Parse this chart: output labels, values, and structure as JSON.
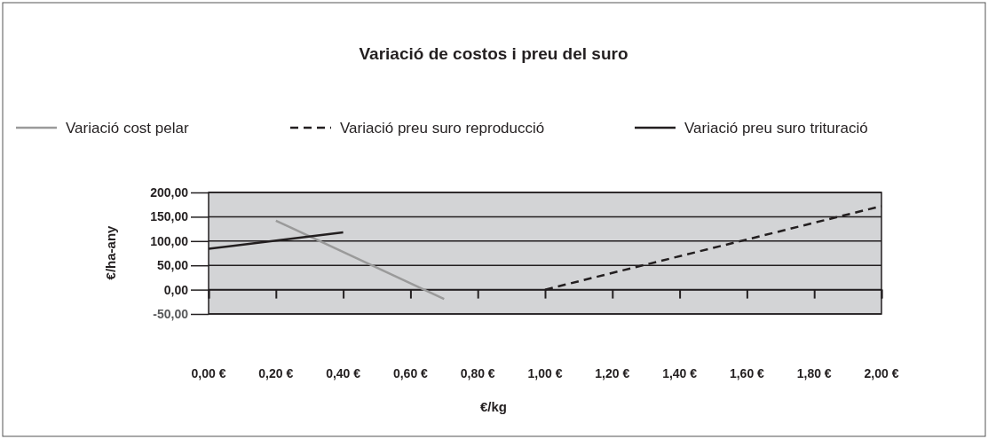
{
  "chart_data": {
    "type": "line",
    "title": "Variació de costos i preu del suro",
    "xlabel": "€/kg",
    "ylabel": "€/ha-any",
    "xlim": [
      0,
      2
    ],
    "xticks": [
      {
        "value": 0,
        "label": "0,00 €"
      },
      {
        "value": 0.2,
        "label": "0,20 €"
      },
      {
        "value": 0.4,
        "label": "0,40 €"
      },
      {
        "value": 0.6,
        "label": "0,60 €"
      },
      {
        "value": 0.8,
        "label": "0,80 €"
      },
      {
        "value": 1,
        "label": "1,00 €"
      },
      {
        "value": 1.2,
        "label": "1,20 €"
      },
      {
        "value": 1.4,
        "label": "1,40 €"
      },
      {
        "value": 1.6,
        "label": "1,60 €"
      },
      {
        "value": 1.8,
        "label": "1,80 €"
      },
      {
        "value": 2,
        "label": "2,00 €"
      }
    ],
    "ylim": [
      -50,
      200
    ],
    "yticks": [
      {
        "value": -50,
        "label": "-50,00"
      },
      {
        "value": 0,
        "label": "0,00"
      },
      {
        "value": 50,
        "label": "50,00"
      },
      {
        "value": 100,
        "label": "100,00"
      },
      {
        "value": 150,
        "label": "150,00"
      },
      {
        "value": 200,
        "label": "200,00"
      }
    ],
    "grid": "y",
    "legend": "top",
    "marker": "none",
    "ref_lines": [
      {
        "axis": "y",
        "value": 0,
        "color": "#231f20"
      }
    ],
    "series": [
      {
        "name": "Variació cost pelar",
        "color": "#9a9a9a",
        "line_style": "solid",
        "x": [
          0.2,
          0.7
        ],
        "values": [
          142,
          -19
        ]
      },
      {
        "name": "Variació preu suro reproducció",
        "color": "#231f20",
        "line_style": "dashed",
        "x": [
          1,
          2
        ],
        "values": [
          0,
          172
        ]
      },
      {
        "name": "Variació preu suro trituració",
        "color": "#231f20",
        "line_style": "solid",
        "x": [
          0,
          0.4
        ],
        "values": [
          84,
          118
        ]
      }
    ]
  }
}
